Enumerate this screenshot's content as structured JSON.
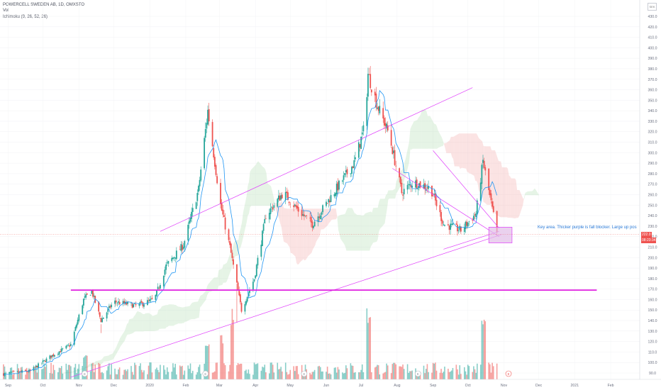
{
  "legend": {
    "title": "POWERCELL SWEDEN AB, 1D, OMXSTO",
    "vol": "Vol",
    "ichimoku": "Ichimoku (9, 26, 52, 26)"
  },
  "scale_label": "SEK",
  "annotation": "Key area. Thicker purple is fall blocker. Large up pos",
  "current_price_label": "222.0",
  "countdown_label": "08:23:34",
  "colors": {
    "up": "#26a69a",
    "down": "#ef5350",
    "trendline": "#e040fb",
    "blocker": "#e020e0",
    "tenkan": "#2196f3",
    "cloud_green": "#a5d6a7",
    "cloud_red": "#ef9a9a",
    "annotation": "#2b7bd8",
    "key_box": "#e1bee7"
  },
  "chart_data": {
    "type": "candlestick",
    "title": "POWERCELL SWEDEN AB, 1D, OMXSTO",
    "y_unit": "SEK",
    "ylim": [
      85,
      440
    ],
    "y_ticks": [
      90,
      100,
      110,
      120,
      130,
      140,
      150,
      160,
      170,
      180,
      190,
      200,
      210,
      220,
      230,
      240,
      250,
      260,
      270,
      280,
      290,
      300,
      310,
      320,
      330,
      340,
      350,
      360,
      370,
      380,
      390,
      400,
      410,
      420,
      430
    ],
    "x_ticks": [
      "Sep",
      "Oct",
      "Nov",
      "Dec",
      "2020",
      "Feb",
      "Mar",
      "Apr",
      "May",
      "Jun",
      "Jul",
      "Aug",
      "Sep",
      "Oct",
      "Nov",
      "Dec",
      "2021",
      "Feb"
    ],
    "earnings_markers": [
      "Nov",
      "Feb",
      "May",
      "Aug",
      "Nov"
    ],
    "price_path": [
      {
        "date": "2019-08-28",
        "close": 89
      },
      {
        "date": "2019-09-20",
        "close": 92
      },
      {
        "date": "2019-10-08",
        "close": 106
      },
      {
        "date": "2019-10-25",
        "close": 117
      },
      {
        "date": "2019-11-05",
        "close": 160
      },
      {
        "date": "2019-11-12",
        "close": 168
      },
      {
        "date": "2019-11-20",
        "close": 140
      },
      {
        "date": "2019-12-01",
        "close": 158
      },
      {
        "date": "2019-12-20",
        "close": 154
      },
      {
        "date": "2020-01-05",
        "close": 160
      },
      {
        "date": "2020-01-15",
        "close": 192
      },
      {
        "date": "2020-01-30",
        "close": 212
      },
      {
        "date": "2020-02-12",
        "close": 265
      },
      {
        "date": "2020-02-20",
        "close": 340
      },
      {
        "date": "2020-03-02",
        "close": 250
      },
      {
        "date": "2020-03-10",
        "close": 210
      },
      {
        "date": "2020-03-20",
        "close": 150
      },
      {
        "date": "2020-03-31",
        "close": 180
      },
      {
        "date": "2020-04-10",
        "close": 240
      },
      {
        "date": "2020-04-25",
        "close": 262
      },
      {
        "date": "2020-05-08",
        "close": 245
      },
      {
        "date": "2020-05-20",
        "close": 232
      },
      {
        "date": "2020-06-05",
        "close": 258
      },
      {
        "date": "2020-06-25",
        "close": 290
      },
      {
        "date": "2020-07-04",
        "close": 325
      },
      {
        "date": "2020-07-07",
        "close": 375
      },
      {
        "date": "2020-07-15",
        "close": 345
      },
      {
        "date": "2020-07-25",
        "close": 318
      },
      {
        "date": "2020-08-05",
        "close": 262
      },
      {
        "date": "2020-08-15",
        "close": 272
      },
      {
        "date": "2020-08-30",
        "close": 266
      },
      {
        "date": "2020-09-10",
        "close": 232
      },
      {
        "date": "2020-09-25",
        "close": 226
      },
      {
        "date": "2020-10-08",
        "close": 242
      },
      {
        "date": "2020-10-14",
        "close": 292
      },
      {
        "date": "2020-10-20",
        "close": 258
      },
      {
        "date": "2020-10-26",
        "close": 222
      }
    ],
    "horizontal_levels": [
      {
        "price": 169,
        "label": "fall blocker"
      }
    ],
    "current_price": 222.0
  }
}
